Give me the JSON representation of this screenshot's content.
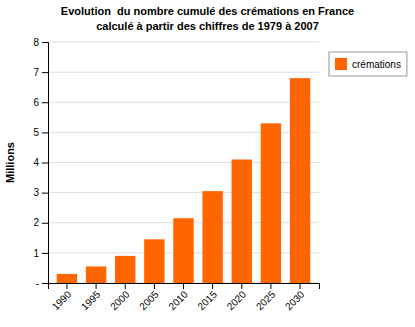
{
  "chart_data": {
    "type": "bar",
    "title": "Evolution  du nombre cumulé des crémations en France",
    "subtitle": "calculé à partir des chiffres de 1979 à 2007",
    "ylabel": "Millions",
    "categories": [
      "1990",
      "1995",
      "2000",
      "2005",
      "2010",
      "2015",
      "2020",
      "2025",
      "2030"
    ],
    "series": [
      {
        "name": "crémations",
        "color": "#FF6600",
        "values": [
          0.3,
          0.55,
          0.9,
          1.45,
          2.15,
          3.05,
          4.1,
          5.3,
          6.8
        ]
      }
    ],
    "ylim": [
      0,
      8
    ],
    "yticks": [
      {
        "value": 0,
        "label": "-"
      },
      1,
      2,
      3,
      4,
      5,
      6,
      7,
      8
    ],
    "grid": true,
    "legend": "right"
  }
}
